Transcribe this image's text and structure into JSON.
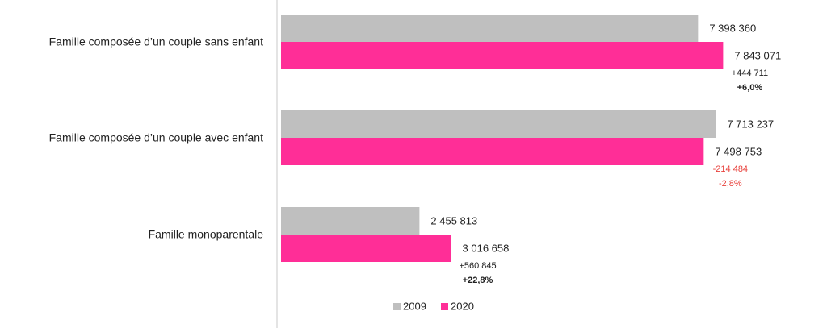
{
  "chart_data": {
    "type": "bar",
    "orientation": "horizontal",
    "categories": [
      "Famille composée d’un couple sans enfant",
      "Famille composée d’un couple avec enfant",
      "Famille monoparentale"
    ],
    "series": [
      {
        "name": "2009",
        "color": "#bfbfbf",
        "values": [
          7398360,
          7713237,
          2455813
        ],
        "value_labels": [
          "7 398 360",
          "7 713 237",
          "2 455 813"
        ]
      },
      {
        "name": "2020",
        "color": "#ff2e97",
        "values": [
          7843071,
          7498753,
          3016658
        ],
        "value_labels": [
          "7 843 071",
          "7 498 753",
          "3 016 658"
        ]
      }
    ],
    "differences": [
      {
        "value": 444711,
        "label": "+444 711"
      },
      {
        "value": -214484,
        "label": "-214 484"
      },
      {
        "value": 560845,
        "label": "+560 845"
      }
    ],
    "percent_changes": [
      {
        "value": 6.0,
        "label": "+6,0%"
      },
      {
        "value": -2.8,
        "label": "-2,8%"
      },
      {
        "value": 22.8,
        "label": "+22,8%"
      }
    ],
    "negative_color": "#e8413c",
    "xlim": [
      0,
      9600000
    ],
    "legend": "bottom"
  }
}
